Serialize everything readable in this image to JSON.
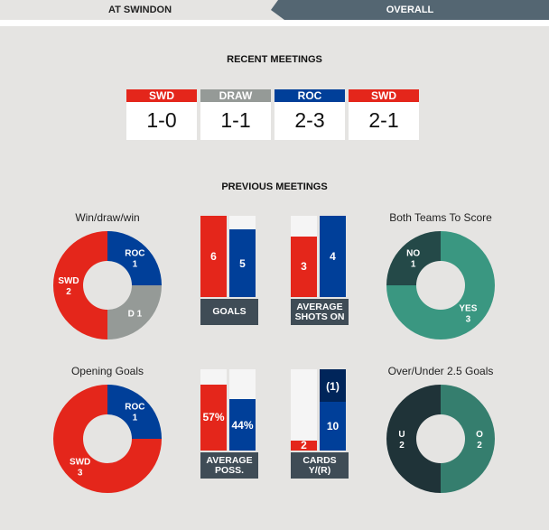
{
  "tabs": {
    "home": "AT SWINDON",
    "overall": "OVERALL"
  },
  "recent": {
    "title": "RECENT MEETINGS",
    "matches": [
      {
        "result": "SWD",
        "score": "1-0",
        "color": "#e4261b"
      },
      {
        "result": "DRAW",
        "score": "1-1",
        "color": "#959a97"
      },
      {
        "result": "ROC",
        "score": "2-3",
        "color": "#003f99"
      },
      {
        "result": "SWD",
        "score": "2-1",
        "color": "#e4261b"
      }
    ]
  },
  "previous": {
    "title": "PREVIOUS MEETINGS"
  },
  "colors": {
    "swd": "#e4261b",
    "roc": "#003f99",
    "draw": "#959a97",
    "empty": "#f5f5f5",
    "roc_red": "#00255a",
    "dark_green": "#244948",
    "green": "#3a9781",
    "ou_dark": "#1f3338",
    "ou_green": "#357e6e"
  },
  "donuts": [
    {
      "title": "Win/draw/win",
      "segments": [
        {
          "label": "ROC",
          "value": 1,
          "color": "#003f99"
        },
        {
          "label": "D",
          "value": 1,
          "color": "#959a97"
        },
        {
          "label": "SWD",
          "value": 2,
          "color": "#e4261b"
        }
      ]
    },
    {
      "title": "Both Teams To Score",
      "segments": [
        {
          "label": "YES",
          "value": 3,
          "color": "#3a9781"
        },
        {
          "label": "NO",
          "value": 1,
          "color": "#244948"
        }
      ]
    },
    {
      "title": "Opening Goals",
      "segments": [
        {
          "label": "ROC",
          "value": 1,
          "color": "#003f99"
        },
        {
          "label": "SWD",
          "value": 3,
          "color": "#e4261b"
        }
      ]
    },
    {
      "title": "Over/Under 2.5 Goals",
      "segments": [
        {
          "label": "O",
          "value": 2,
          "color": "#357e6e"
        },
        {
          "label": "U",
          "value": 2,
          "color": "#1f3338"
        }
      ]
    }
  ],
  "bars": [
    {
      "label": "GOALS",
      "home": "6",
      "away": "5",
      "home_value": 6,
      "away_value": 5,
      "max": 6
    },
    {
      "label": "AVERAGE SHOTS ON",
      "home": "3",
      "away": "4",
      "home_value": 3,
      "away_value": 4,
      "max": 4
    },
    {
      "label": "AVERAGE POSS.",
      "home": "57%",
      "away": "44%",
      "home_value": 57,
      "away_value": 44,
      "max": 70
    },
    {
      "label": "CARDS Y/(R)",
      "home": "2",
      "away": "10",
      "away_red": "(1)",
      "home_value": 2,
      "away_value": 10,
      "away_red_value": 1,
      "max": 16
    }
  ]
}
